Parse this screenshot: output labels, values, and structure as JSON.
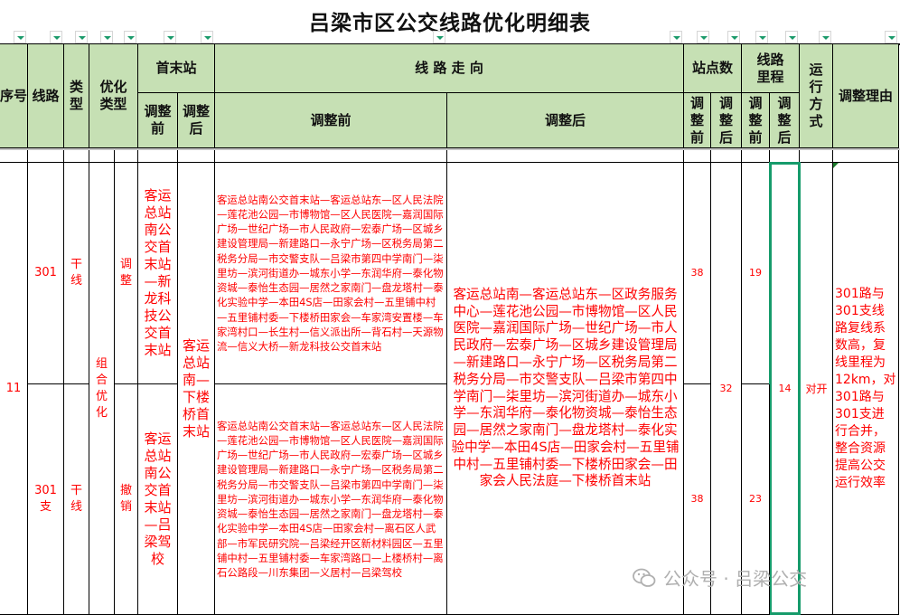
{
  "title": "吕梁市区公交线路优化明细表",
  "headers": {
    "seq": "序号",
    "line": "线路",
    "type": "类型",
    "opt_type": "优化类型",
    "terminal": "首末站",
    "route": "线 路 走 向",
    "stops": "站点数",
    "mileage": "线路里程",
    "mode": "运行方式",
    "reason": "调整理由",
    "before": "调整前",
    "after": "调整后"
  },
  "rows": [
    {
      "line": "301",
      "type": "干线",
      "opt_sub": "调整",
      "terminal_before": "客运总站南公交首末站—新龙科技公交首末站",
      "route_before": "客运总站南公交首末站—客运总站东—区人民法院—莲花池公园—市博物馆—区人民医院—嘉润国际广场—世纪广场—市人民政府—宏泰广场—区城乡建设管理局—新建路口—永宁广场—区税务局第二税务分局—市交警支队—吕梁市第四中学南门—柒里坊—滨河街道办—城东小学—东润华府—泰化物资城—泰怡生态园—居然之家南门—盘龙塔村—泰化实验中学—本田4S店—田家会村—五里铺中村—五里铺村委—下楼桥田家会—车家湾安置楼—车家湾村口—长生村—信义派出所—背石村—天源物流—信义大桥—新龙科技公交首末站",
      "stops_before": "38",
      "mileage_before": "19"
    },
    {
      "line": "301支",
      "type": "干线",
      "opt_sub": "撤销",
      "terminal_before": "客运总站南公交首末站—吕梁驾校",
      "route_before": "客运总站南公交首末站—客运总站东—区人民法院—莲花池公园—市博物馆—区人民医院—嘉润国际广场—世纪广场—市人民政府—宏泰广场—区城乡建设管理局—新建路口—永宁广场—区税务局第二税务分局—市交警支队—吕梁市第四中学南门—柒里坊—滨河街道办—城东小学—东润华府—泰化物资城—泰怡生态园—居然之家南门—盘龙塔村—泰化实验中学—本田4S店—田家会村—离石区人武部—市军民研究院—吕梁经开区新材料园区—五里铺中村—五里铺村委—车家湾路口—上楼桥村—离石公路段—川东集团—义居村—吕梁驾校",
      "stops_before": "38",
      "mileage_before": "23"
    }
  ],
  "merged": {
    "seq": "11",
    "opt_type": "组合优化",
    "terminal_after": "客运总站南—下楼桥首末站",
    "route_after": "客运总站南—客运总站东—区政务服务中心—莲花池公园—市博物馆—区人民医院—嘉润国际广场—世纪广场—市人民政府—宏泰广场—区城乡建设管理局—新建路口—永宁广场—区税务局第二税务分局—市交警支队—吕梁市第四中学南门—柒里坊—滨河街道办—城东小学—东润华府—泰化物资城—泰怡生态园—居然之家南门—盘龙塔村—泰化实验中学—本田4S店—田家会村—五里铺中村—五里铺村委—下楼桥田家会—田家会人民法庭—下楼桥首末站",
    "stops_after": "32",
    "mileage_after": "14",
    "mode": "对开",
    "reason": "301路与301支线路复线系数高，复线里程为12km，对301路与301支进行合并，整合资源提高公交运行效率"
  },
  "watermark": {
    "text": "公众号 · 吕梁公交",
    "icon": "wechat-icon"
  },
  "colors": {
    "header_bg": "#c6e0b4",
    "text_red": "#ff0000",
    "selection": "#169b6b"
  }
}
